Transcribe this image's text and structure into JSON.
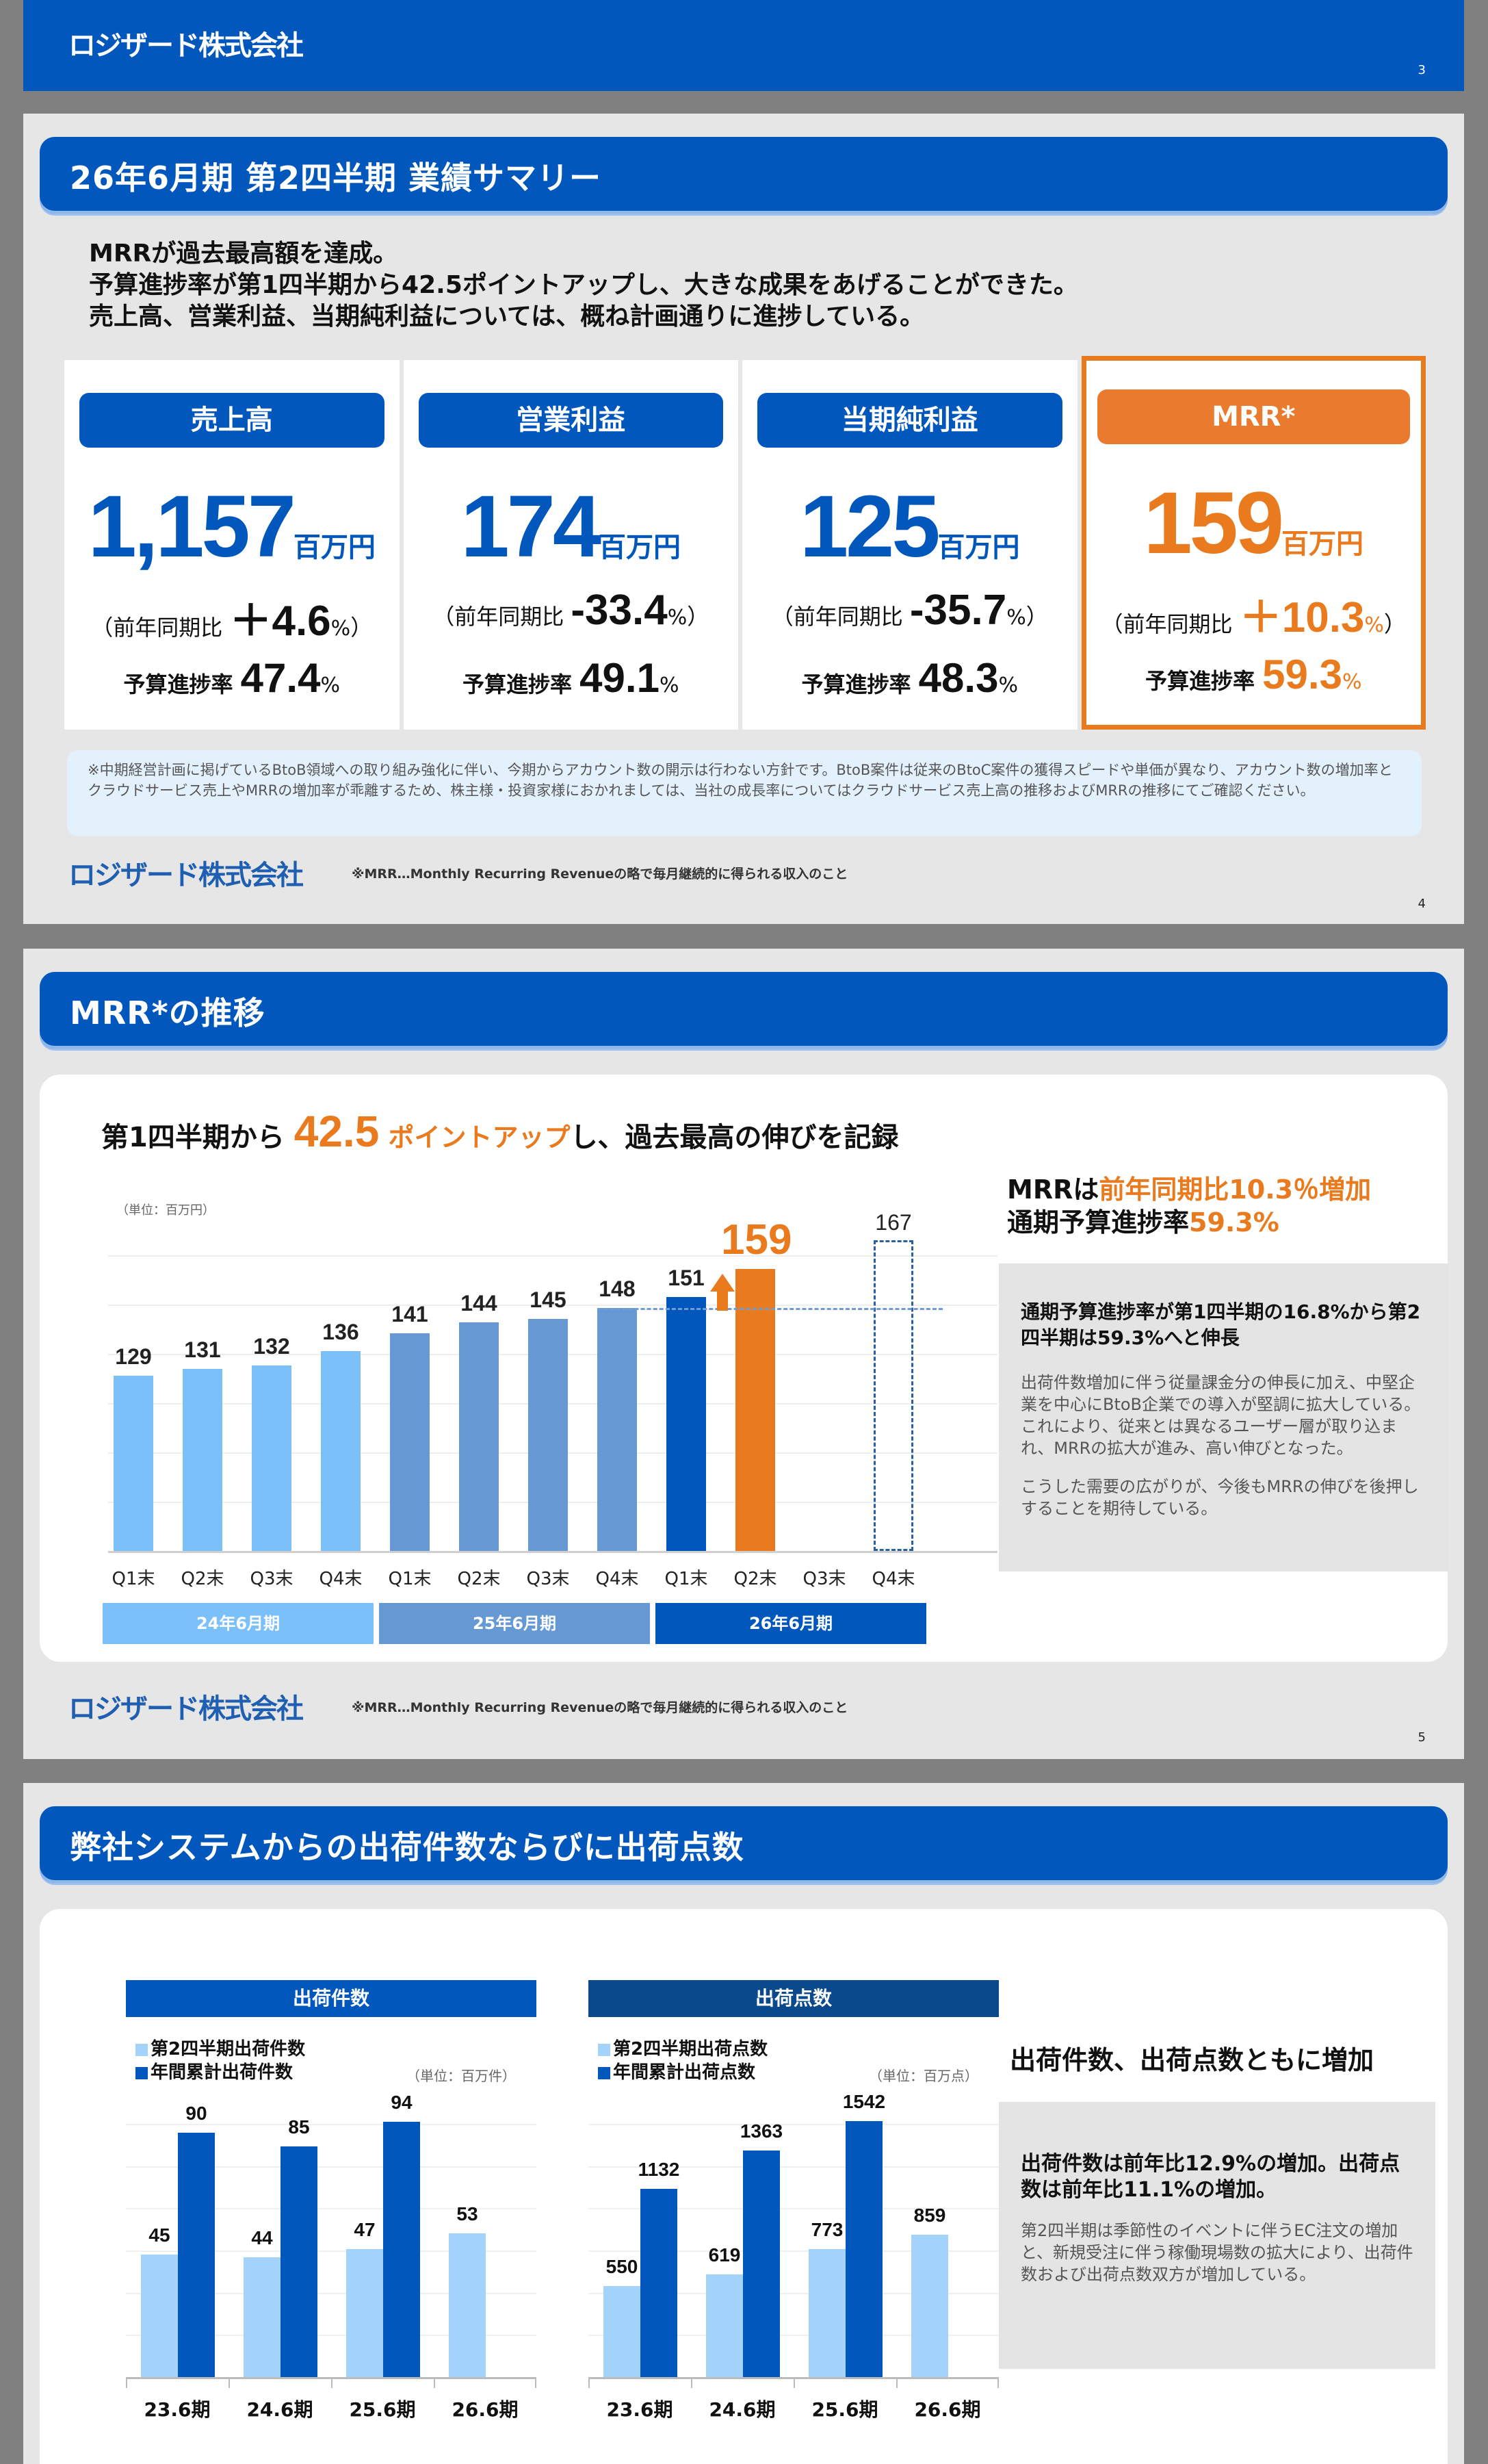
{
  "company": "ロジザード株式会社",
  "slides": {
    "cover": {
      "brand": "ロジザード株式会社",
      "page": "3"
    },
    "summary": {
      "title": "26年6月期 第2四半期 業績サマリー",
      "lines": [
        "MRRが過去最高額を達成。",
        "予算進捗率が第1四半期から42.5ポイントアップし、大きな成果をあげることができた。",
        "売上高、営業利益、当期純利益については、概ね計画通りに進捗している。"
      ],
      "yoy_prefix": "（前年同期比",
      "yoy_suffix": "）",
      "budget_prefix": "予算進捗率",
      "unit": "百万円",
      "pct": "%",
      "kpis": [
        {
          "label": "売上高",
          "value": "1,157",
          "yoy": "＋4.6",
          "budget": "47.4",
          "highlight": false
        },
        {
          "label": "営業利益",
          "value": "174",
          "yoy": "-33.4",
          "budget": "49.1",
          "highlight": false
        },
        {
          "label": "当期純利益",
          "value": "125",
          "yoy": "-35.7",
          "budget": "48.3",
          "highlight": false
        },
        {
          "label": "MRR*",
          "value": "159",
          "yoy": "＋10.3",
          "budget": "59.3",
          "highlight": true
        }
      ],
      "notice": "※中期経営計画に掲げているBtoB領域への取り組み強化に伴い、今期からアカウント数の開示は行わない方針です。BtoB案件は従来のBtoC案件の獲得スピードや単価が異なり、アカウント数の増加率とクラウドサービス売上やMRRの増加率が乖離するため、株主様・投資家様におかれましては、当社の成長率についてはクラウドサービス売上高の推移およびMRRの推移にてご確認ください。",
      "footer_note": "※MRR…Monthly Recurring Revenueの略で毎月継続的に得られる収入のこと",
      "page": "4"
    },
    "mrr": {
      "title": "MRR*の推移",
      "headline_pre": "第1四半期から ",
      "headline_num": "42.5",
      "headline_mid": " ポイントアップ",
      "headline_post": "し、過去最高の伸びを記録",
      "unit_label": "（単位：百万円）",
      "side_head_line1_a": "MRRは",
      "side_head_line1_b": "前年同期比10.3％増加",
      "side_head_line2_a": "通期予算進捗率",
      "side_head_line2_b": "59.3%",
      "box_head": "通期予算進捗率が第1四半期の16.8%から第2四半期は59.3%へと伸長",
      "box_body": "出荷件数増加に伴う従量課金分の伸長に加え、中堅企業を中心にBtoB企業での導入が堅調に拡大している。これにより、従来とは異なるユーザー層が取り込まれ、MRRの拡大が進み、高い伸びとなった。",
      "box_body2": "こうした需要の広がりが、今後もMRRの伸びを後押しすることを期待している。",
      "footer_note": "※MRR…Monthly Recurring Revenueの略で毎月継続的に得られる収入のこと",
      "page": "5"
    },
    "shipments": {
      "title": "弊社システムからの出荷件数ならびに出荷点数",
      "side_head": "出荷件数、出荷点数ともに増加",
      "box_head": "出荷件数は前年比12.9%の増加。出荷点数は前年比11.1%の増加。",
      "box_body": "第2四半期は季節性のイベントに伴うEC注文の増加と、新規受注に伴う稼働現場数の拡大により、出荷件数および出荷点数双方が増加している。"
    }
  },
  "colors": {
    "brand_blue": "#0257bd",
    "accent_orange": "#ea7a1e",
    "fy24_bar": "#7cc0fa",
    "fy25_bar": "#6699d3",
    "fy26_bar": "#0257bd",
    "light_bar": "#a3d3fa",
    "dark_bar": "#0257bd",
    "points_head": "#0a4a8c"
  },
  "chart_data": [
    {
      "type": "bar",
      "title": "MRR*の推移",
      "ylabel": "百万円",
      "unit": "（単位：百万円）",
      "categories": [
        "Q1末",
        "Q2末",
        "Q3末",
        "Q4末",
        "Q1末",
        "Q2末",
        "Q3末",
        "Q4末",
        "Q1末",
        "Q2末",
        "Q3末",
        "Q4末"
      ],
      "groups": [
        "24年6月期",
        "25年6月期",
        "26年6月期"
      ],
      "values": [
        129,
        131,
        132,
        136,
        141,
        144,
        145,
        148,
        151,
        159,
        null,
        null
      ],
      "projection": {
        "index": 11,
        "value": 167,
        "style": "dashed-outline"
      },
      "highlight": {
        "index": 9,
        "value": 159,
        "color": "#ea7a1e"
      },
      "reference_line": {
        "value": 148,
        "style": "dashed"
      },
      "ylim": [
        80,
        175
      ],
      "grid": true
    },
    {
      "type": "bar",
      "title": "出荷件数",
      "unit": "（単位：百万件）",
      "categories": [
        "23.6期",
        "24.6期",
        "25.6期",
        "26.6期"
      ],
      "series": [
        {
          "name": "第2四半期出荷件数",
          "values": [
            45,
            44,
            47,
            53
          ]
        },
        {
          "name": "年間累計出荷件数",
          "values": [
            90,
            85,
            94,
            null
          ]
        }
      ],
      "ylim": [
        0,
        110
      ],
      "grid": true,
      "legend_position": "top-left"
    },
    {
      "type": "bar",
      "title": "出荷点数",
      "unit": "（単位：百万点）",
      "categories": [
        "23.6期",
        "24.6期",
        "25.6期",
        "26.6期"
      ],
      "series": [
        {
          "name": "第2四半期出荷点数",
          "values": [
            550,
            619,
            773,
            859
          ]
        },
        {
          "name": "年間累計出荷点数",
          "values": [
            1132,
            1363,
            1542,
            null
          ]
        }
      ],
      "ylim": [
        0,
        1800
      ],
      "grid": true,
      "legend_position": "top-left"
    }
  ]
}
